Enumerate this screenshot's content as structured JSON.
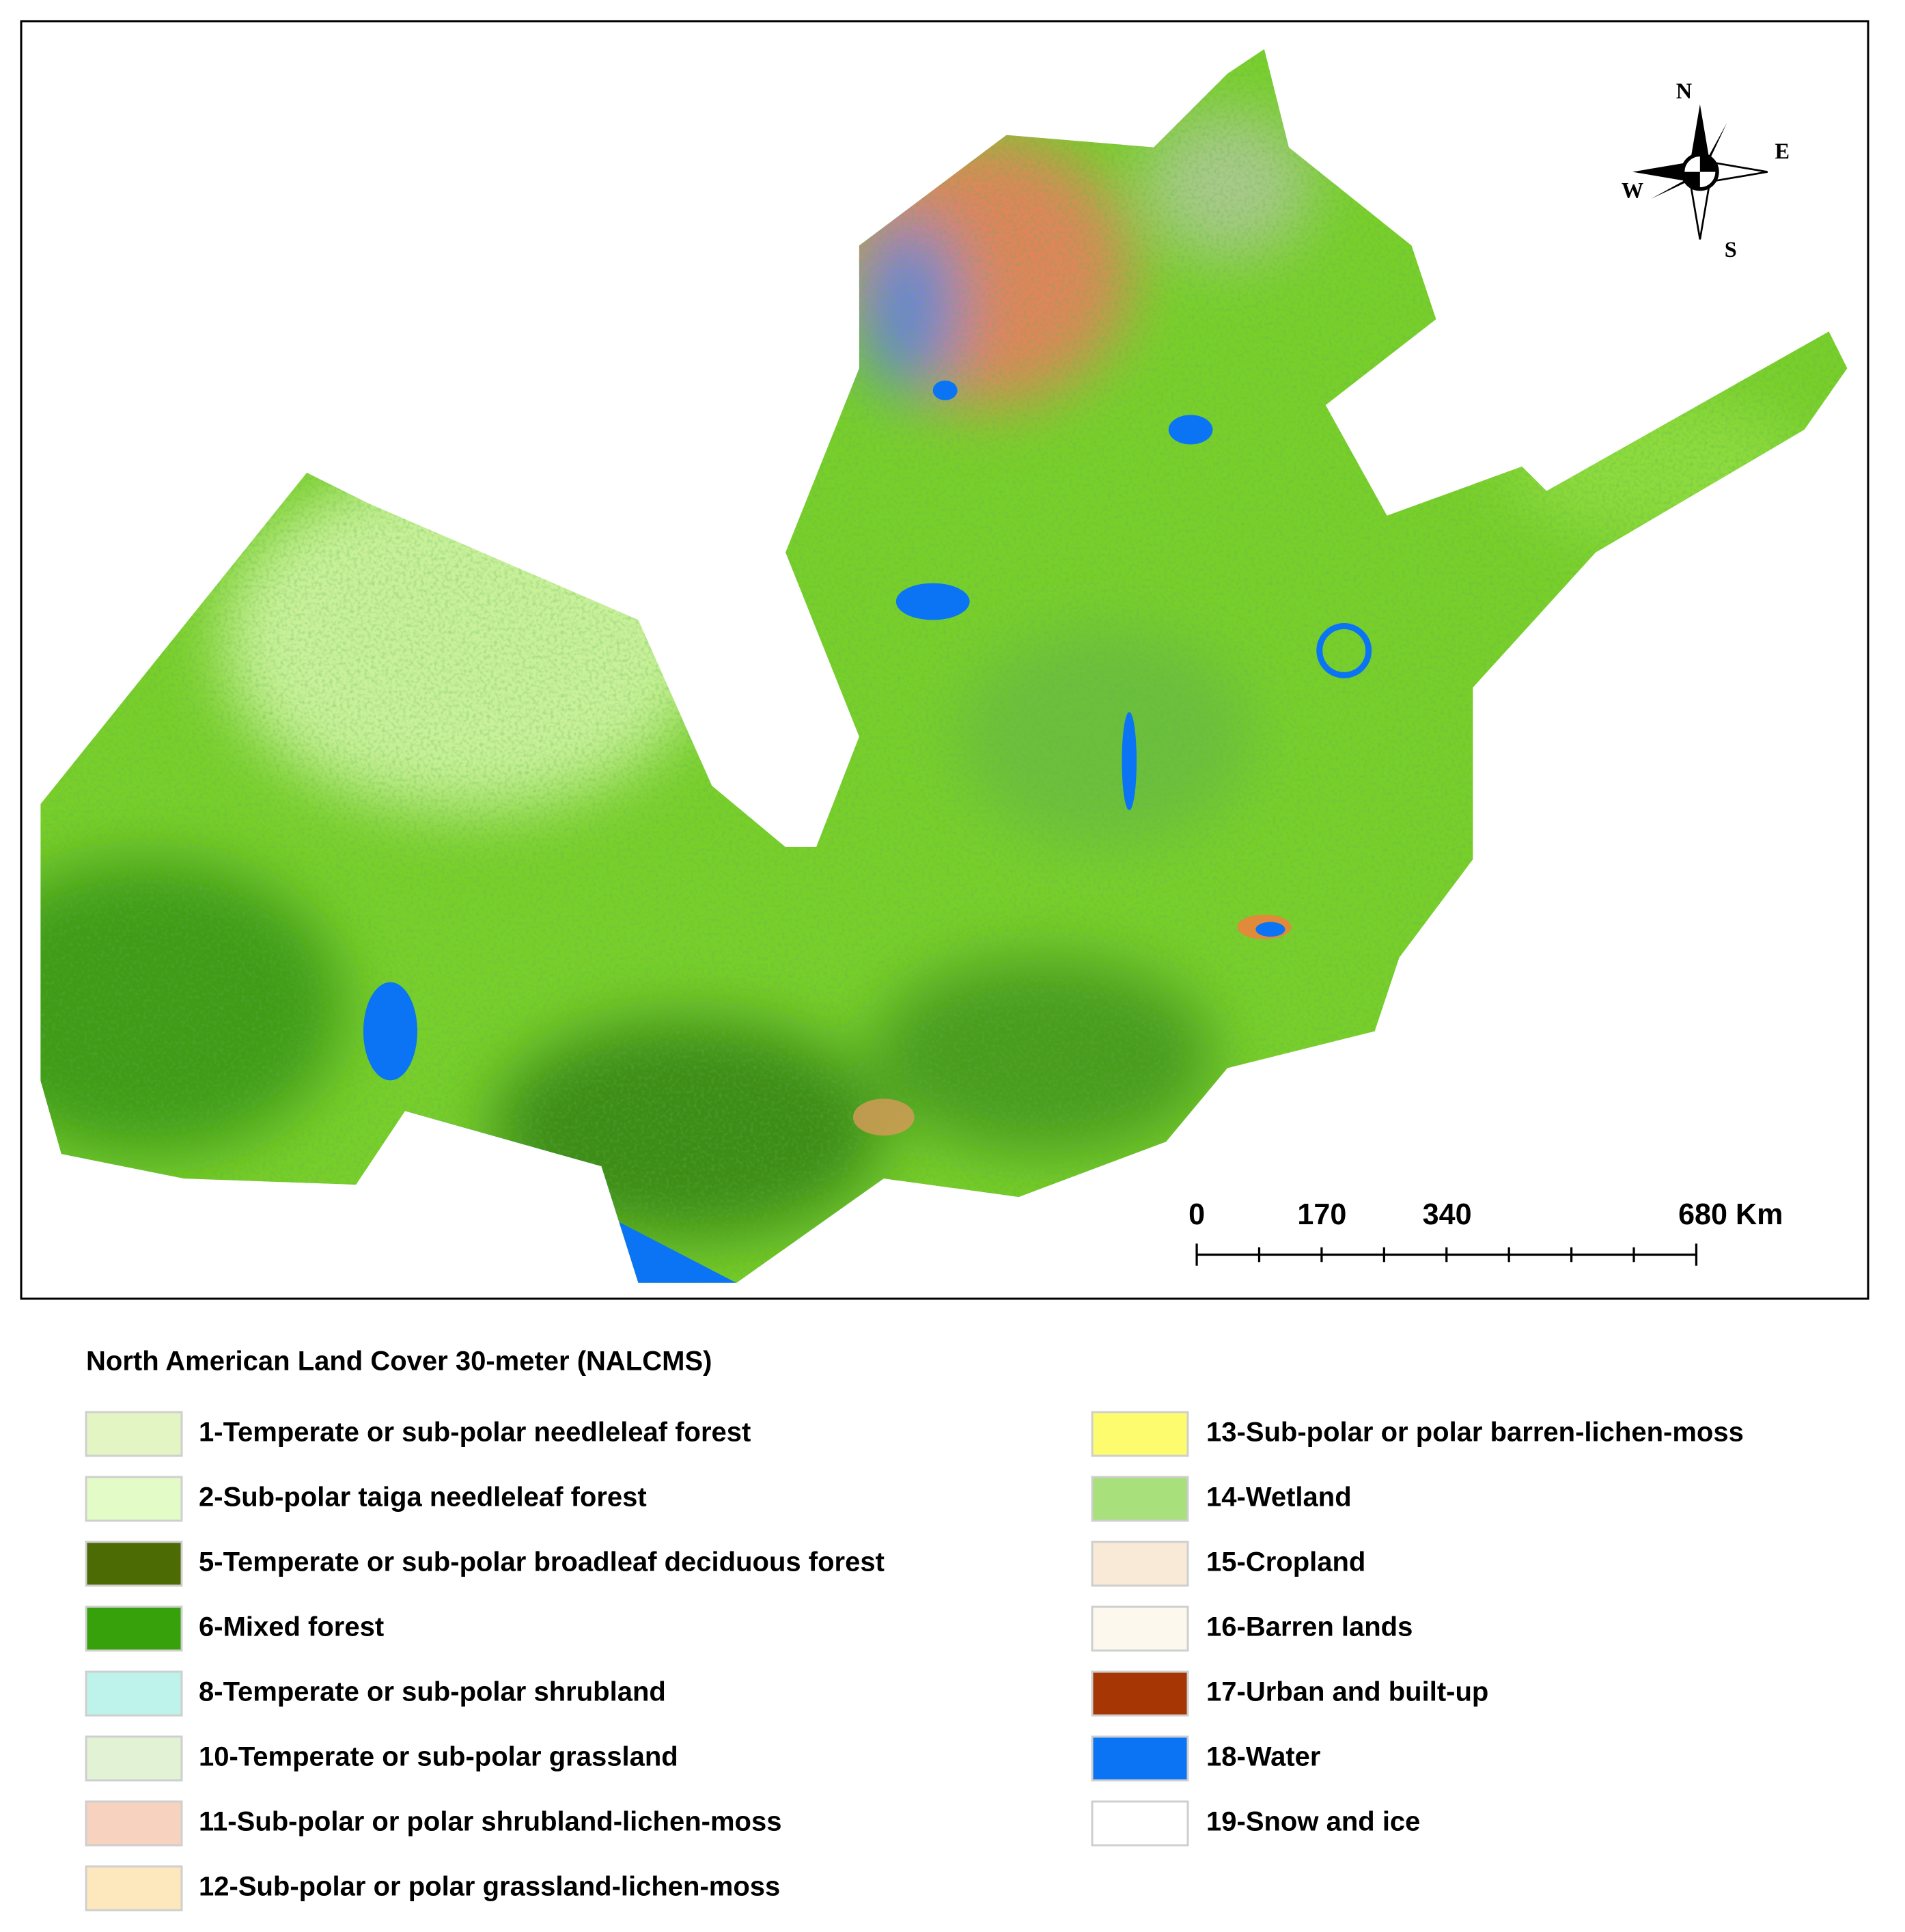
{
  "compass": {
    "north": "N",
    "east": "E",
    "south": "S",
    "west": "W"
  },
  "scale_bar": {
    "labels": [
      "0",
      "170",
      "340",
      "680 Km"
    ]
  },
  "legend": {
    "title": "North American Land Cover 30-meter (NALCMS)",
    "items": [
      {
        "label": "1-Temperate or sub-polar needleleaf forest",
        "color": "#e4f5c4"
      },
      {
        "label": "2-Sub-polar taiga needleleaf forest",
        "color": "#e3fbc6"
      },
      {
        "label": "5-Temperate or sub-polar broadleaf deciduous forest",
        "color": "#4c6b05"
      },
      {
        "label": "6-Mixed forest",
        "color": "#36a10b"
      },
      {
        "label": "8-Temperate or sub-polar shrubland",
        "color": "#bdf3ea"
      },
      {
        "label": "10-Temperate or sub-polar grassland",
        "color": "#e2f2d4"
      },
      {
        "label": "11-Sub-polar or polar shrubland-lichen-moss",
        "color": "#f7d3bf"
      },
      {
        "label": "12-Sub-polar or polar grassland-lichen-moss",
        "color": "#fde7bd"
      },
      {
        "label": "13-Sub-polar or polar barren-lichen-moss",
        "color": "#fdfb6e"
      },
      {
        "label": "14-Wetland",
        "color": "#a8e07c"
      },
      {
        "label": "15-Cropland",
        "color": "#f8ead6"
      },
      {
        "label": "16-Barren lands",
        "color": "#fdf8ee"
      },
      {
        "label": "17-Urban and built-up",
        "color": "#a63603"
      },
      {
        "label": "18-Water",
        "color": "#0a74f4"
      },
      {
        "label": "19-Snow and ice",
        "color": "#ffffff"
      }
    ]
  }
}
